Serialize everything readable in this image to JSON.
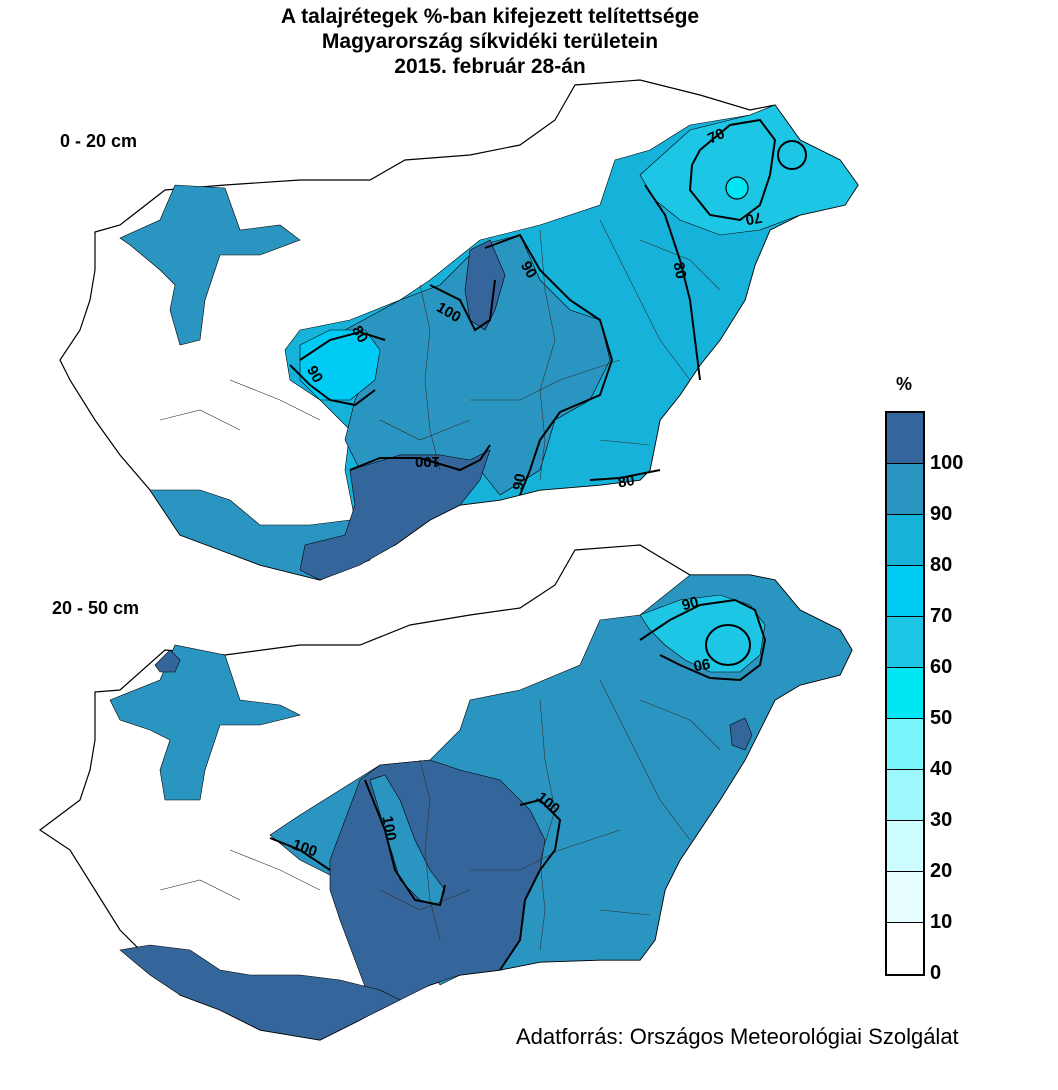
{
  "title": {
    "line1": "A talajrétegek %-ban kifejezett telítettsége",
    "line2": "Magyarország síkvidéki területein",
    "line3": "2015. február 28-án"
  },
  "maps": {
    "top": {
      "depth_label": "0 - 20 cm",
      "contour_labels": [
        "70",
        "70",
        "80",
        "90",
        "100",
        "80",
        "90",
        "100",
        "90",
        "80"
      ]
    },
    "bottom": {
      "depth_label": "20 - 50 cm",
      "contour_labels": [
        "90",
        "90",
        "100",
        "100",
        "100"
      ]
    }
  },
  "legend": {
    "unit": "%",
    "ticks": [
      "100",
      "90",
      "80",
      "70",
      "60",
      "50",
      "40",
      "30",
      "20",
      "10",
      "0"
    ],
    "colors": [
      "#35669b",
      "#2a95c0",
      "#16b2da",
      "#00cbf5",
      "#1ec6e6",
      "#00e6f5",
      "#7af5fb",
      "#9cf8fb",
      "#ccfcfe",
      "#e6feff",
      "#ffffff"
    ]
  },
  "source": "Adatforrás: Országos Meteorológiai Szolgálat"
}
